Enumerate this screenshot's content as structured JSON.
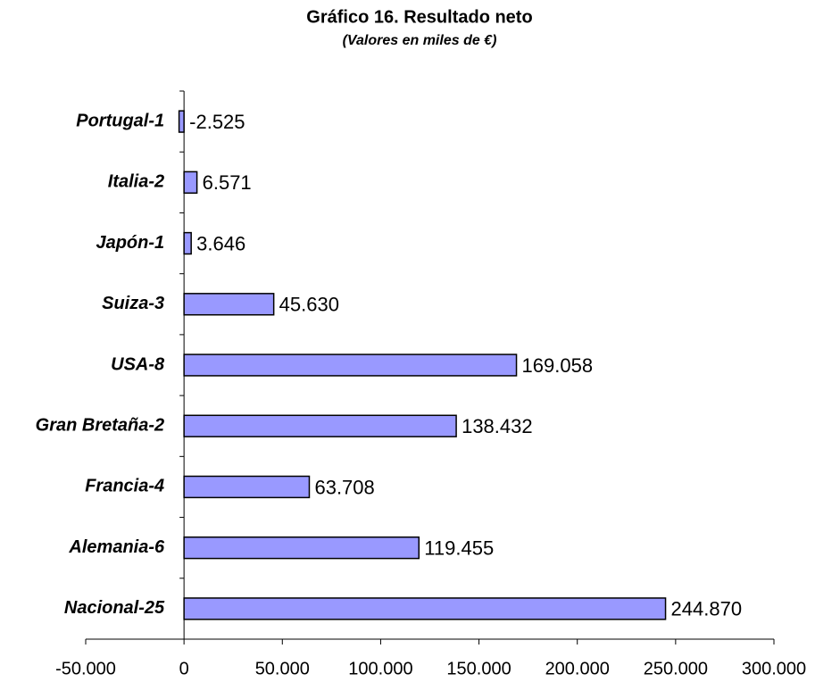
{
  "chart_data": {
    "type": "bar",
    "orientation": "horizontal",
    "title": "Gráfico 16. Resultado neto",
    "subtitle": "(Valores en miles de €)",
    "categories": [
      "Portugal-1",
      "Italia-2",
      "Japón-1",
      "Suiza-3",
      "USA-8",
      "Gran Bretaña-2",
      "Francia-4",
      "Alemania-6",
      "Nacional-25"
    ],
    "values": [
      -2525,
      6571,
      3646,
      45630,
      169058,
      138432,
      63708,
      119455,
      244870
    ],
    "value_labels": [
      "-2.525",
      "6.571",
      "3.646",
      "45.630",
      "169.058",
      "138.432",
      "63.708",
      "119.455",
      "244.870"
    ],
    "color": "#9999ff",
    "xlim": [
      -50000,
      300000
    ],
    "xticks": [
      {
        "value": -50000,
        "label": "-50.000"
      },
      0,
      {
        "value": 50000,
        "label": "50.000"
      },
      {
        "value": 100000,
        "label": "100.000"
      },
      {
        "value": 150000,
        "label": "150.000"
      },
      {
        "value": 200000,
        "label": "200.000"
      },
      {
        "value": 250000,
        "label": "250.000"
      },
      {
        "value": 300000,
        "label": "300.000"
      }
    ]
  }
}
